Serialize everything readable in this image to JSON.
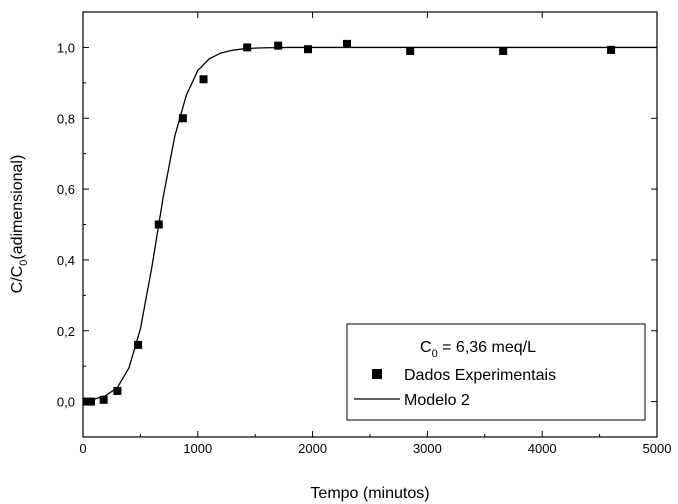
{
  "chart_data": {
    "type": "scatter",
    "title": "",
    "xlabel": "Tempo (minutos)",
    "ylabel_main": "C/C",
    "ylabel_sub": "0",
    "ylabel_rest": "(adimensional)",
    "xlim": [
      0,
      5000
    ],
    "ylim": [
      -0.1,
      1.1
    ],
    "x_ticks": [
      0,
      1000,
      2000,
      3000,
      4000,
      5000
    ],
    "x_tick_labels": [
      "0",
      "1000",
      "2000",
      "3000",
      "4000",
      "5000"
    ],
    "y_ticks": [
      0.0,
      0.2,
      0.4,
      0.6,
      0.8,
      1.0
    ],
    "y_tick_labels": [
      "0,0",
      "0,2",
      "0,4",
      "0,6",
      "0,8",
      "1,0"
    ],
    "grid": false,
    "legend": {
      "placement": "bottom-right",
      "title_main": "C",
      "title_sub": "0",
      "title_rest": " = 6,36 meq/L"
    },
    "series": [
      {
        "name": "Dados Experimentais",
        "type": "scatter",
        "marker": "square",
        "color": "#000000",
        "points": [
          [
            30,
            0.0
          ],
          [
            70,
            0.0
          ],
          [
            180,
            0.005
          ],
          [
            300,
            0.03
          ],
          [
            480,
            0.16
          ],
          [
            660,
            0.5
          ],
          [
            870,
            0.8
          ],
          [
            1050,
            0.91
          ],
          [
            1430,
            1.0
          ],
          [
            1700,
            1.005
          ],
          [
            1960,
            0.995
          ],
          [
            2300,
            1.01
          ],
          [
            2850,
            0.99
          ],
          [
            3660,
            0.99
          ],
          [
            4600,
            0.993
          ]
        ]
      },
      {
        "name": "Modelo 2",
        "type": "line",
        "color": "#000000",
        "x": [
          0,
          100,
          200,
          300,
          400,
          500,
          600,
          700,
          800,
          900,
          1000,
          1100,
          1200,
          1300,
          1400,
          1500,
          1600,
          1700,
          1800,
          2000,
          2500,
          3000,
          3500,
          4000,
          4500,
          5000
        ],
        "y": [
          0.003,
          0.007,
          0.017,
          0.04,
          0.095,
          0.205,
          0.38,
          0.58,
          0.75,
          0.865,
          0.935,
          0.968,
          0.984,
          0.992,
          0.996,
          0.998,
          0.999,
          0.9995,
          1.0,
          1.0,
          1.0,
          1.0,
          1.0,
          1.0,
          1.0,
          1.0
        ]
      }
    ]
  }
}
